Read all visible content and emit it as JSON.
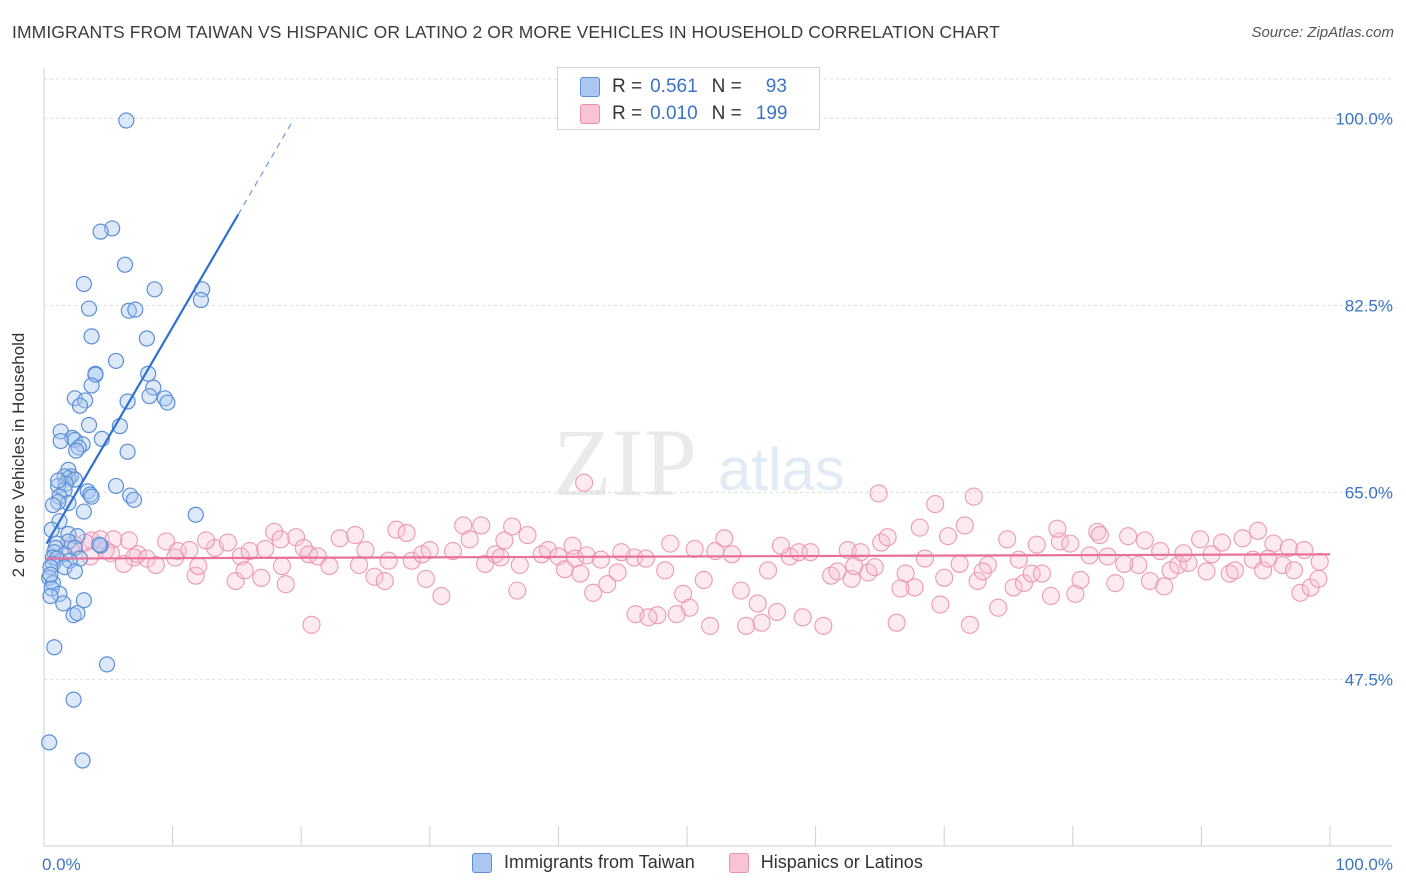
{
  "title": "IMMIGRANTS FROM TAIWAN VS HISPANIC OR LATINO 2 OR MORE VEHICLES IN HOUSEHOLD CORRELATION CHART",
  "source": "Source: ZipAtlas.com",
  "watermark": {
    "zip": "ZIP",
    "atlas": "atlas"
  },
  "colors": {
    "blue": "#5b8fd8",
    "blue_fill": "#a9c7f0",
    "blue_line": "#2f6fce",
    "pink": "#eb8fae",
    "pink_fill": "#f7c3d5",
    "pink_line": "#e8709a",
    "axis_value": "#3b74c6",
    "grid": "#dcdcdc"
  },
  "legend_top": [
    {
      "r_label": "R =",
      "r_value": "0.561",
      "n_label": "N =",
      "n_value": "93",
      "color": "blue"
    },
    {
      "r_label": "R =",
      "r_value": "0.010",
      "n_label": "N =",
      "n_value": "199",
      "color": "pink"
    }
  ],
  "legend_bottom": [
    {
      "label": "Immigrants from Taiwan",
      "color": "blue"
    },
    {
      "label": "Hispanics or Latinos",
      "color": "pink"
    }
  ],
  "chart_data": {
    "type": "scatter",
    "title": "IMMIGRANTS FROM TAIWAN VS HISPANIC OR LATINO 2 OR MORE VEHICLES IN HOUSEHOLD CORRELATION CHART",
    "xlabel": "",
    "ylabel": "2 or more Vehicles in Household",
    "xlim": [
      0,
      100
    ],
    "ylim": [
      31.9,
      102
    ],
    "x_tick_labels": [
      "0.0%",
      "100.0%"
    ],
    "y_ticks": [
      47.5,
      65.0,
      82.5,
      100.0
    ],
    "y_tick_labels": [
      "47.5%",
      "65.0%",
      "82.5%",
      "100.0%"
    ],
    "grid": true,
    "series": [
      {
        "name": "Immigrants from Taiwan",
        "color": "blue",
        "R": 0.561,
        "N": 93,
        "trend": {
          "x0": 0.2,
          "y0": 60.2,
          "x1": 15.1,
          "y1": 91.0,
          "x_dash_end": 19.4
        },
        "points": [
          [
            6.4,
            99.8
          ],
          [
            5.3,
            89.7
          ],
          [
            4.4,
            89.4
          ],
          [
            6.3,
            86.3
          ],
          [
            3.1,
            84.5
          ],
          [
            8.6,
            84.0
          ],
          [
            12.3,
            84.0
          ],
          [
            12.2,
            83.0
          ],
          [
            3.5,
            82.2
          ],
          [
            6.6,
            82.0
          ],
          [
            7.1,
            82.1
          ],
          [
            3.7,
            79.6
          ],
          [
            8.0,
            79.4
          ],
          [
            5.6,
            77.3
          ],
          [
            4.0,
            76.1
          ],
          [
            4.0,
            76.0
          ],
          [
            8.1,
            76.1
          ],
          [
            3.7,
            75.0
          ],
          [
            8.5,
            74.8
          ],
          [
            8.2,
            74.0
          ],
          [
            9.4,
            73.8
          ],
          [
            9.6,
            73.4
          ],
          [
            2.4,
            73.8
          ],
          [
            3.2,
            73.6
          ],
          [
            2.8,
            73.1
          ],
          [
            6.5,
            73.5
          ],
          [
            5.9,
            71.2
          ],
          [
            3.5,
            71.3
          ],
          [
            1.3,
            70.7
          ],
          [
            2.2,
            70.1
          ],
          [
            4.5,
            70.0
          ],
          [
            2.4,
            69.9
          ],
          [
            1.3,
            69.8
          ],
          [
            3.0,
            69.5
          ],
          [
            2.7,
            69.2
          ],
          [
            2.5,
            68.9
          ],
          [
            6.5,
            68.8
          ],
          [
            1.9,
            67.1
          ],
          [
            2.1,
            66.5
          ],
          [
            1.9,
            66.3
          ],
          [
            1.6,
            66.5
          ],
          [
            2.4,
            66.2
          ],
          [
            1.7,
            65.8
          ],
          [
            1.1,
            65.6
          ],
          [
            5.6,
            65.6
          ],
          [
            6.7,
            64.7
          ],
          [
            1.6,
            65.2
          ],
          [
            3.4,
            65.1
          ],
          [
            3.6,
            64.8
          ],
          [
            3.7,
            64.6
          ],
          [
            1.2,
            64.6
          ],
          [
            1.9,
            64.0
          ],
          [
            7.0,
            64.3
          ],
          [
            1.1,
            64.1
          ],
          [
            0.7,
            63.8
          ],
          [
            3.1,
            63.2
          ],
          [
            1.2,
            62.3
          ],
          [
            11.8,
            62.9
          ],
          [
            0.6,
            61.5
          ],
          [
            1.9,
            61.1
          ],
          [
            2.6,
            60.9
          ],
          [
            1.9,
            60.4
          ],
          [
            1.0,
            60.2
          ],
          [
            4.4,
            60.0
          ],
          [
            0.9,
            59.8
          ],
          [
            2.4,
            59.8
          ],
          [
            0.8,
            59.4
          ],
          [
            1.6,
            59.2
          ],
          [
            0.7,
            58.9
          ],
          [
            1.0,
            58.8
          ],
          [
            2.8,
            58.8
          ],
          [
            2.0,
            58.6
          ],
          [
            0.7,
            58.3
          ],
          [
            0.5,
            58.0
          ],
          [
            1.6,
            58.0
          ],
          [
            2.4,
            57.6
          ],
          [
            0.4,
            57.0
          ],
          [
            0.7,
            56.5
          ],
          [
            0.6,
            56.0
          ],
          [
            1.2,
            55.5
          ],
          [
            0.5,
            55.3
          ],
          [
            3.1,
            54.9
          ],
          [
            1.5,
            54.6
          ],
          [
            2.3,
            53.5
          ],
          [
            2.6,
            53.7
          ],
          [
            0.8,
            50.5
          ],
          [
            4.9,
            48.9
          ],
          [
            2.3,
            45.6
          ],
          [
            0.4,
            41.6
          ],
          [
            3.0,
            39.9
          ],
          [
            1.1,
            66.1
          ],
          [
            4.3,
            60.1
          ],
          [
            0.5,
            57.3
          ]
        ]
      },
      {
        "name": "Hispanics or Latinos",
        "color": "pink",
        "R": 0.01,
        "N": 199,
        "trend": {
          "x0": 0.2,
          "y0": 58.8,
          "x1": 100.0,
          "y1": 59.2
        },
        "points": [
          [
            3.7,
            60.5
          ],
          [
            3.2,
            60.3
          ],
          [
            4.4,
            60.6
          ],
          [
            6.6,
            60.5
          ],
          [
            5.4,
            60.6
          ],
          [
            2.1,
            59.6
          ],
          [
            5.2,
            59.3
          ],
          [
            7.3,
            59.2
          ],
          [
            7.0,
            58.9
          ],
          [
            3.6,
            59.0
          ],
          [
            8.0,
            58.8
          ],
          [
            9.5,
            60.4
          ],
          [
            10.4,
            59.5
          ],
          [
            13.3,
            59.8
          ],
          [
            11.8,
            57.2
          ],
          [
            11.3,
            59.6
          ],
          [
            12.6,
            60.5
          ],
          [
            14.3,
            60.3
          ],
          [
            15.3,
            59.0
          ],
          [
            14.9,
            56.7
          ],
          [
            16.0,
            59.5
          ],
          [
            17.2,
            59.7
          ],
          [
            17.9,
            61.3
          ],
          [
            18.8,
            56.4
          ],
          [
            18.5,
            58.1
          ],
          [
            19.6,
            60.8
          ],
          [
            18.4,
            60.6
          ],
          [
            20.2,
            59.8
          ],
          [
            20.6,
            59.2
          ],
          [
            21.3,
            59.0
          ],
          [
            22.2,
            58.1
          ],
          [
            23.0,
            60.7
          ],
          [
            24.2,
            61.0
          ],
          [
            25.0,
            59.6
          ],
          [
            25.7,
            57.1
          ],
          [
            26.8,
            58.6
          ],
          [
            27.4,
            61.5
          ],
          [
            28.2,
            61.2
          ],
          [
            28.6,
            58.6
          ],
          [
            29.4,
            59.2
          ],
          [
            29.7,
            56.9
          ],
          [
            30.9,
            55.3
          ],
          [
            31.8,
            59.5
          ],
          [
            32.6,
            61.9
          ],
          [
            34.0,
            61.9
          ],
          [
            34.3,
            58.3
          ],
          [
            35.1,
            59.2
          ],
          [
            35.5,
            58.9
          ],
          [
            35.8,
            60.5
          ],
          [
            36.4,
            61.8
          ],
          [
            36.8,
            55.8
          ],
          [
            37.6,
            61.0
          ],
          [
            38.7,
            59.2
          ],
          [
            39.2,
            59.6
          ],
          [
            40.0,
            59.0
          ],
          [
            41.1,
            60.0
          ],
          [
            41.3,
            58.8
          ],
          [
            41.7,
            57.4
          ],
          [
            42.2,
            59.1
          ],
          [
            43.3,
            58.7
          ],
          [
            43.8,
            56.4
          ],
          [
            44.6,
            57.5
          ],
          [
            45.9,
            58.9
          ],
          [
            46.0,
            53.6
          ],
          [
            46.8,
            58.8
          ],
          [
            47.7,
            53.5
          ],
          [
            48.3,
            57.7
          ],
          [
            48.7,
            60.2
          ],
          [
            49.7,
            55.5
          ],
          [
            50.2,
            54.2
          ],
          [
            50.6,
            59.7
          ],
          [
            51.3,
            56.8
          ],
          [
            51.8,
            52.5
          ],
          [
            52.2,
            59.5
          ],
          [
            52.9,
            60.7
          ],
          [
            54.2,
            55.8
          ],
          [
            54.6,
            52.5
          ],
          [
            55.8,
            52.8
          ],
          [
            56.3,
            57.7
          ],
          [
            57.0,
            53.8
          ],
          [
            58.0,
            59.0
          ],
          [
            58.7,
            59.4
          ],
          [
            59.6,
            59.4
          ],
          [
            60.6,
            52.5
          ],
          [
            61.2,
            57.2
          ],
          [
            62.5,
            59.6
          ],
          [
            62.8,
            56.9
          ],
          [
            63.5,
            59.4
          ],
          [
            64.1,
            57.5
          ],
          [
            64.6,
            58.0
          ],
          [
            65.1,
            60.3
          ],
          [
            65.6,
            60.8
          ],
          [
            66.3,
            52.8
          ],
          [
            67.0,
            57.4
          ],
          [
            67.7,
            56.1
          ],
          [
            68.5,
            58.8
          ],
          [
            69.7,
            54.5
          ],
          [
            70.3,
            60.9
          ],
          [
            71.2,
            58.3
          ],
          [
            72.0,
            52.6
          ],
          [
            72.6,
            56.7
          ],
          [
            73.4,
            58.2
          ],
          [
            74.2,
            54.2
          ],
          [
            74.9,
            60.6
          ],
          [
            75.4,
            56.1
          ],
          [
            76.2,
            56.5
          ],
          [
            76.8,
            57.4
          ],
          [
            77.6,
            57.4
          ],
          [
            78.3,
            55.3
          ],
          [
            79.0,
            60.4
          ],
          [
            79.8,
            60.2
          ],
          [
            80.2,
            55.5
          ],
          [
            81.3,
            59.1
          ],
          [
            81.9,
            61.3
          ],
          [
            82.7,
            59.0
          ],
          [
            83.3,
            56.5
          ],
          [
            84.3,
            60.9
          ],
          [
            85.1,
            58.2
          ],
          [
            86.0,
            56.7
          ],
          [
            86.8,
            59.5
          ],
          [
            87.6,
            57.7
          ],
          [
            88.2,
            58.2
          ],
          [
            89.0,
            58.4
          ],
          [
            89.9,
            60.6
          ],
          [
            90.8,
            59.2
          ],
          [
            91.6,
            60.3
          ],
          [
            92.2,
            57.4
          ],
          [
            93.2,
            60.7
          ],
          [
            94.0,
            58.7
          ],
          [
            94.8,
            57.7
          ],
          [
            95.6,
            60.2
          ],
          [
            96.3,
            58.2
          ],
          [
            97.2,
            57.7
          ],
          [
            97.7,
            55.6
          ],
          [
            98.5,
            56.1
          ],
          [
            99.1,
            56.9
          ],
          [
            2.3,
            60.2
          ],
          [
            4.8,
            59.6
          ],
          [
            6.2,
            58.3
          ],
          [
            8.7,
            58.2
          ],
          [
            10.2,
            58.9
          ],
          [
            12.0,
            58.1
          ],
          [
            15.6,
            57.7
          ],
          [
            16.9,
            57.0
          ],
          [
            20.8,
            52.6
          ],
          [
            24.5,
            58.2
          ],
          [
            26.5,
            56.7
          ],
          [
            30.0,
            59.6
          ],
          [
            33.1,
            60.6
          ],
          [
            37.0,
            58.2
          ],
          [
            40.5,
            57.8
          ],
          [
            42.7,
            55.6
          ],
          [
            44.9,
            59.4
          ],
          [
            47.0,
            53.3
          ],
          [
            49.2,
            53.6
          ],
          [
            53.5,
            59.2
          ],
          [
            55.5,
            54.6
          ],
          [
            57.3,
            60.0
          ],
          [
            59.0,
            53.3
          ],
          [
            61.7,
            57.6
          ],
          [
            63.0,
            58.1
          ],
          [
            66.6,
            56.0
          ],
          [
            68.1,
            61.7
          ],
          [
            70.0,
            57.0
          ],
          [
            71.6,
            61.9
          ],
          [
            73.0,
            57.6
          ],
          [
            75.8,
            58.7
          ],
          [
            77.2,
            60.1
          ],
          [
            78.8,
            61.6
          ],
          [
            80.6,
            56.8
          ],
          [
            82.1,
            61.0
          ],
          [
            84.0,
            58.3
          ],
          [
            85.6,
            60.5
          ],
          [
            87.1,
            56.2
          ],
          [
            88.6,
            59.3
          ],
          [
            90.4,
            57.6
          ],
          [
            92.6,
            57.7
          ],
          [
            94.4,
            61.4
          ],
          [
            95.2,
            58.8
          ],
          [
            96.8,
            59.8
          ],
          [
            98.0,
            59.6
          ],
          [
            99.2,
            58.5
          ],
          [
            42.0,
            65.9
          ],
          [
            64.9,
            64.9
          ],
          [
            69.3,
            63.9
          ],
          [
            72.3,
            64.6
          ]
        ]
      }
    ]
  },
  "y_axis_label": "2 or more Vehicles in Household"
}
